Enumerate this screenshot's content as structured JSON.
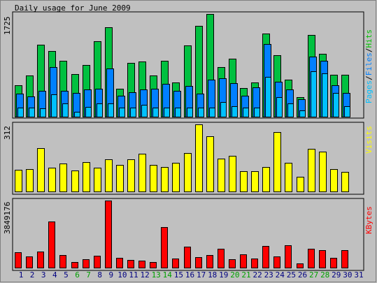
{
  "chart_data": [
    {
      "type": "bar",
      "title": "Daily usage for June 2009",
      "ylabel_max": "1725",
      "ylim": [
        0,
        1725
      ],
      "legend": [
        {
          "text": "Pages",
          "color": "#00c0ff"
        },
        {
          "text": "Files",
          "color": "#0080ff"
        },
        {
          "text": "Hits",
          "color": "#00c000"
        }
      ],
      "categories": [
        "1",
        "2",
        "3",
        "4",
        "5",
        "6",
        "7",
        "8",
        "9",
        "10",
        "11",
        "12",
        "13",
        "14",
        "15",
        "16",
        "17",
        "18",
        "19",
        "20",
        "21",
        "22",
        "23",
        "24",
        "25",
        "26",
        "27",
        "28",
        "29",
        "30",
        "31"
      ],
      "series": [
        {
          "name": "Hits",
          "color": "#00c040",
          "values": [
            531,
            696,
            1213,
            1105,
            934,
            712,
            872,
            1263,
            1507,
            470,
            902,
            927,
            696,
            940,
            573,
            1193,
            1526,
            1723,
            831,
            973,
            486,
            575,
            1400,
            1028,
            617,
            327,
            1378,
            1060,
            700,
            700,
            null
          ]
        },
        {
          "name": "Files",
          "color": "#0080ff",
          "values": [
            392,
            345,
            432,
            836,
            439,
            394,
            453,
            467,
            810,
            354,
            413,
            459,
            474,
            552,
            432,
            517,
            389,
            617,
            646,
            566,
            348,
            490,
            1218,
            586,
            461,
            290,
            1004,
            941,
            525,
            397,
            null
          ]
        },
        {
          "name": "Pages",
          "color": "#00c0ff",
          "values": [
            150,
            150,
            142,
            380,
            224,
            88,
            169,
            226,
            220,
            150,
            150,
            199,
            150,
            150,
            150,
            150,
            150,
            150,
            244,
            180,
            150,
            150,
            669,
            327,
            220,
            105,
            765,
            733,
            402,
            180,
            null
          ]
        }
      ]
    },
    {
      "type": "bar",
      "ylabel_max": "312",
      "ylim": [
        0,
        312
      ],
      "legend": [
        {
          "text": "Visits",
          "color": "#ffff00"
        }
      ],
      "categories": [
        "1",
        "2",
        "3",
        "4",
        "5",
        "6",
        "7",
        "8",
        "9",
        "10",
        "11",
        "12",
        "13",
        "14",
        "15",
        "16",
        "17",
        "18",
        "19",
        "20",
        "21",
        "22",
        "23",
        "24",
        "25",
        "26",
        "27",
        "28",
        "29",
        "30",
        "31"
      ],
      "series": [
        {
          "name": "Visits",
          "color": "#ffff00",
          "values": [
            100,
            104,
            200,
            111,
            130,
            98,
            136,
            110,
            150,
            124,
            150,
            174,
            122,
            115,
            134,
            180,
            312,
            257,
            152,
            167,
            94,
            94,
            115,
            275,
            132,
            67,
            199,
            186,
            103,
            90,
            null
          ]
        }
      ]
    },
    {
      "type": "bar",
      "ylabel_max": "3849176",
      "ylim": [
        0,
        3849176
      ],
      "legend": [
        {
          "text": "KBytes",
          "color": "#ff0000"
        }
      ],
      "categories": [
        "1",
        "2",
        "3",
        "4",
        "5",
        "6",
        "7",
        "8",
        "9",
        "10",
        "11",
        "12",
        "13",
        "14",
        "15",
        "16",
        "17",
        "18",
        "19",
        "20",
        "21",
        "22",
        "23",
        "24",
        "25",
        "26",
        "27",
        "28",
        "29",
        "30",
        "31"
      ],
      "series": [
        {
          "name": "KBytes",
          "color": "#ff0000",
          "values": [
            880000,
            658000,
            920000,
            2660000,
            741000,
            315000,
            480000,
            663000,
            3849176,
            571000,
            454000,
            384000,
            310000,
            2310000,
            521000,
            1195000,
            586000,
            721000,
            1085000,
            473000,
            754000,
            540000,
            1228000,
            659000,
            1270000,
            252000,
            1085000,
            1017000,
            565000,
            991000,
            null
          ]
        }
      ]
    }
  ],
  "x_axis_labels": [
    {
      "text": "1",
      "color": "#000080"
    },
    {
      "text": "2",
      "color": "#000080"
    },
    {
      "text": "3",
      "color": "#000080"
    },
    {
      "text": "4",
      "color": "#000080"
    },
    {
      "text": "5",
      "color": "#000080"
    },
    {
      "text": "6",
      "color": "#00a000"
    },
    {
      "text": "7",
      "color": "#00a000"
    },
    {
      "text": "8",
      "color": "#000080"
    },
    {
      "text": "9",
      "color": "#000080"
    },
    {
      "text": "10",
      "color": "#000080"
    },
    {
      "text": "11",
      "color": "#000080"
    },
    {
      "text": "12",
      "color": "#000080"
    },
    {
      "text": "13",
      "color": "#00a000"
    },
    {
      "text": "14",
      "color": "#00a000"
    },
    {
      "text": "15",
      "color": "#000080"
    },
    {
      "text": "16",
      "color": "#000080"
    },
    {
      "text": "17",
      "color": "#000080"
    },
    {
      "text": "18",
      "color": "#000080"
    },
    {
      "text": "19",
      "color": "#000080"
    },
    {
      "text": "20",
      "color": "#00a000"
    },
    {
      "text": "21",
      "color": "#00a000"
    },
    {
      "text": "22",
      "color": "#000080"
    },
    {
      "text": "23",
      "color": "#000080"
    },
    {
      "text": "24",
      "color": "#000080"
    },
    {
      "text": "25",
      "color": "#000080"
    },
    {
      "text": "26",
      "color": "#000080"
    },
    {
      "text": "27",
      "color": "#00a000"
    },
    {
      "text": "28",
      "color": "#00a000"
    },
    {
      "text": "29",
      "color": "#000080"
    },
    {
      "text": "30",
      "color": "#000080"
    },
    {
      "text": "31",
      "color": "#000080"
    }
  ],
  "colors": {
    "background": "#c0c0c0",
    "panel": "#c0c0c0",
    "legend_separator": "#000000"
  }
}
